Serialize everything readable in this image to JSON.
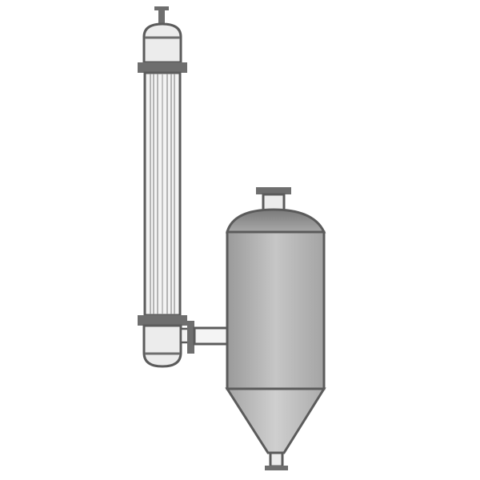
{
  "diagram": {
    "colors": {
      "background": "#ffffff",
      "outline": "#5b5b5b",
      "flange": "#6e6e6e",
      "head_light": "#ececec",
      "tube_light": "#f3f3f3",
      "tube_line": "#8a8a8a",
      "separator_body_left": "#9a9a9a",
      "separator_body_mid": "#c6c6c6",
      "separator_body_right": "#a4a4a4",
      "separator_dome": "#8e8e8e",
      "cone": "#b9b9b9",
      "pipe": "#f4f4f4"
    },
    "components": [
      {
        "name": "heat-exchanger",
        "icon": "shell-and-tube-column-icon"
      },
      {
        "name": "vapor-liquid-separator",
        "icon": "cylindrical-vessel-icon"
      },
      {
        "name": "connecting-pipe",
        "icon": "horizontal-pipe-icon"
      },
      {
        "name": "conical-bottom",
        "icon": "cone-hopper-icon"
      }
    ]
  }
}
